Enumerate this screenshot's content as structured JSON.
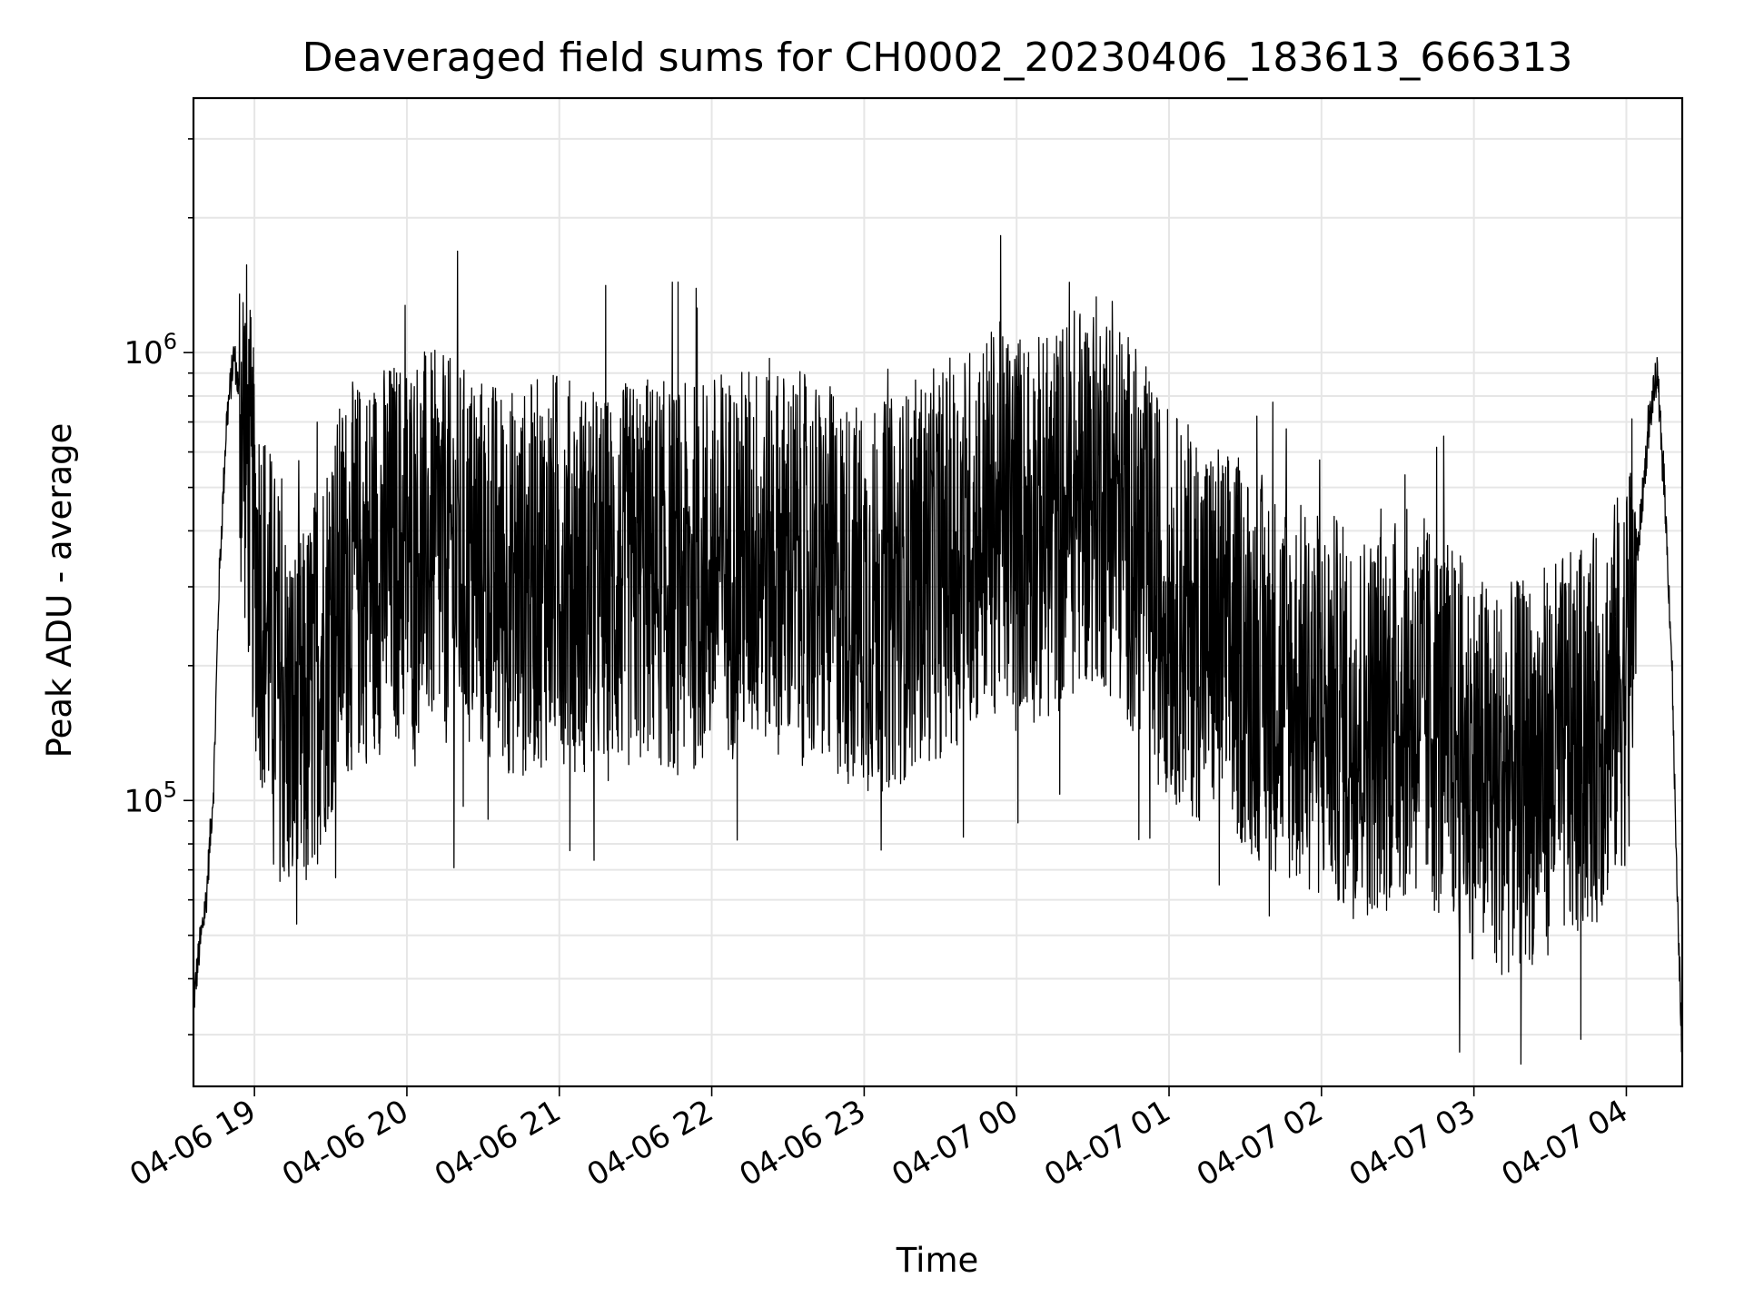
{
  "chart_data": {
    "type": "line",
    "title": "Deaveraged field sums for CH0002_20230406_183613_666313",
    "xlabel": "Time",
    "ylabel": "Peak ADU - average",
    "x_scale": "time",
    "y_scale": "log",
    "xlim": [
      "04-06 18:36",
      "04-07 04:22"
    ],
    "ylim": [
      23000,
      3700000
    ],
    "grid": true,
    "line_color": "#000000",
    "x_ticks": [
      "04-06 19",
      "04-06 20",
      "04-06 21",
      "04-06 22",
      "04-06 23",
      "04-07 00",
      "04-07 01",
      "04-07 02",
      "04-07 03",
      "04-07 04"
    ],
    "y_ticks": [
      {
        "value": 100000,
        "base": "10",
        "exp": "5"
      },
      {
        "value": 1000000,
        "base": "10",
        "exp": "6"
      }
    ],
    "series": [
      {
        "x": [
          "04-06 18:36",
          "04-06 18:38",
          "04-06 18:41",
          "04-06 18:44",
          "04-06 18:46",
          "04-06 18:49",
          "04-06 18:52",
          "04-06 18:54",
          "04-06 18:57",
          "04-06 19:00",
          "04-06 19:05",
          "04-06 19:10",
          "04-06 19:15",
          "04-06 19:20",
          "04-06 19:25",
          "04-06 19:30",
          "04-06 19:35",
          "04-06 19:40",
          "04-06 19:45",
          "04-06 19:50",
          "04-06 19:55",
          "04-06 20:00",
          "04-06 20:05",
          "04-06 20:10",
          "04-06 20:15",
          "04-06 20:20",
          "04-06 20:25",
          "04-06 20:30",
          "04-06 20:35",
          "04-06 20:40",
          "04-06 20:45",
          "04-06 20:50",
          "04-06 20:55",
          "04-06 21:00",
          "04-06 21:05",
          "04-06 21:10",
          "04-06 21:15",
          "04-06 21:20",
          "04-06 21:25",
          "04-06 21:30",
          "04-06 21:35",
          "04-06 21:40",
          "04-06 21:45",
          "04-06 21:50",
          "04-06 21:55",
          "04-06 22:00",
          "04-06 22:05",
          "04-06 22:10",
          "04-06 22:15",
          "04-06 22:20",
          "04-06 22:25",
          "04-06 22:30",
          "04-06 22:35",
          "04-06 22:40",
          "04-06 22:45",
          "04-06 22:50",
          "04-06 22:55",
          "04-06 23:00",
          "04-06 23:05",
          "04-06 23:10",
          "04-06 23:15",
          "04-06 23:20",
          "04-06 23:25",
          "04-06 23:30",
          "04-06 23:35",
          "04-06 23:40",
          "04-06 23:45",
          "04-06 23:50",
          "04-06 23:55",
          "04-07 00:00",
          "04-07 00:05",
          "04-07 00:10",
          "04-07 00:15",
          "04-07 00:20",
          "04-07 00:25",
          "04-07 00:30",
          "04-07 00:35",
          "04-07 00:40",
          "04-07 00:45",
          "04-07 00:50",
          "04-07 00:55",
          "04-07 01:00",
          "04-07 01:05",
          "04-07 01:10",
          "04-07 01:15",
          "04-07 01:20",
          "04-07 01:25",
          "04-07 01:30",
          "04-07 01:35",
          "04-07 01:40",
          "04-07 01:45",
          "04-07 01:50",
          "04-07 01:55",
          "04-07 02:00",
          "04-07 02:05",
          "04-07 02:10",
          "04-07 02:15",
          "04-07 02:20",
          "04-07 02:25",
          "04-07 02:30",
          "04-07 02:35",
          "04-07 02:40",
          "04-07 02:45",
          "04-07 02:50",
          "04-07 02:55",
          "04-07 03:00",
          "04-07 03:05",
          "04-07 03:10",
          "04-07 03:15",
          "04-07 03:20",
          "04-07 03:25",
          "04-07 03:30",
          "04-07 03:35",
          "04-07 03:40",
          "04-07 03:45",
          "04-07 03:50",
          "04-07 03:55",
          "04-07 04:00",
          "04-07 04:03",
          "04-07 04:06",
          "04-07 04:09",
          "04-07 04:12",
          "04-07 04:15",
          "04-07 04:18",
          "04-07 04:20",
          "04-07 04:22"
        ],
        "y": [
          35000,
          45000,
          60000,
          110000,
          300000,
          700000,
          1000000,
          800000,
          600000,
          350000,
          250000,
          180000,
          140000,
          150000,
          200000,
          250000,
          300000,
          320000,
          330000,
          350000,
          360000,
          370000,
          380000,
          370000,
          360000,
          350000,
          340000,
          330000,
          320000,
          310000,
          300000,
          320000,
          330000,
          340000,
          320000,
          310000,
          300000,
          300000,
          310000,
          320000,
          330000,
          320000,
          310000,
          310000,
          320000,
          330000,
          340000,
          340000,
          350000,
          360000,
          350000,
          340000,
          330000,
          320000,
          310000,
          300000,
          290000,
          280000,
          280000,
          290000,
          300000,
          320000,
          330000,
          340000,
          360000,
          380000,
          400000,
          420000,
          430000,
          420000,
          410000,
          400000,
          420000,
          450000,
          480000,
          500000,
          480000,
          440000,
          400000,
          350000,
          300000,
          280000,
          260000,
          250000,
          240000,
          230000,
          220000,
          210000,
          200000,
          190000,
          180000,
          170000,
          170000,
          160000,
          160000,
          150000,
          150000,
          150000,
          155000,
          160000,
          165000,
          160000,
          150000,
          140000,
          130000,
          120000,
          115000,
          110000,
          112000,
          115000,
          120000,
          125000,
          130000,
          130000,
          140000,
          150000,
          170000,
          200000,
          300000,
          450000,
          700000,
          900000,
          500000,
          200000,
          60000,
          28000
        ],
        "noise_band_factor": 0.8
      }
    ]
  }
}
